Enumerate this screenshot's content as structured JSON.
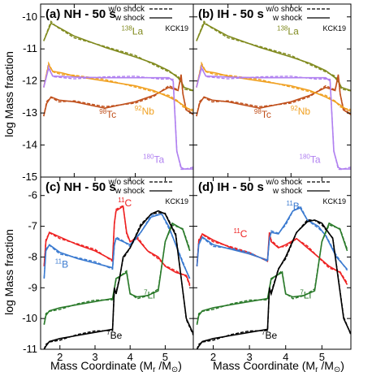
{
  "figure": {
    "shared_xlabel_main": "Mass Coordinate (M",
    "shared_xlabel_sub": "r",
    "shared_xlabel_sep": " /M",
    "shared_xlabel_end": ")",
    "sun_symbol": "⊙"
  },
  "chart_data": [
    {
      "type": "line",
      "panel": "a",
      "title": "(a) NH - 50 s",
      "ylabel": "log Mass fraction",
      "xlabel": "",
      "xlim": [
        1.45,
        3.95
      ],
      "ylim": [
        -15,
        -9.6
      ],
      "xticks": [
        2,
        3
      ],
      "yticks": [
        -15,
        -14,
        -13,
        -12,
        -11,
        -10
      ],
      "legend": {
        "position": "top-right",
        "entries": [
          "w/o shock",
          "w shock"
        ],
        "styles": [
          "dashed",
          "solid"
        ]
      },
      "tag": "KCK19",
      "annotations": [
        {
          "mass": "138",
          "elem": "La",
          "x": 2.95,
          "y": -10.55
        },
        {
          "mass": "98",
          "elem": "Tc",
          "x": 2.55,
          "y": -13.15
        },
        {
          "mass": "92",
          "elem": "Nb",
          "x": 3.15,
          "y": -13.05
        },
        {
          "mass": "180",
          "elem": "Ta",
          "x": 3.3,
          "y": -14.55
        }
      ],
      "series": [
        {
          "name": "138La",
          "color": "#808a1e",
          "x": [
            1.5,
            1.62,
            1.7,
            2.0,
            2.5,
            3.0,
            3.3,
            3.55,
            3.7,
            3.76,
            3.8,
            3.95
          ],
          "y": [
            -10.75,
            -10.2,
            -10.28,
            -10.6,
            -10.95,
            -11.25,
            -11.45,
            -11.68,
            -11.9,
            -12.05,
            -12.2,
            -12.3
          ]
        },
        {
          "name": "98Tc",
          "color": "#c0501c",
          "x": [
            1.5,
            1.55,
            1.62,
            1.75,
            2.0,
            2.5,
            3.0,
            3.3,
            3.55,
            3.7,
            3.75,
            3.78,
            3.83,
            3.95
          ],
          "y": [
            -13.1,
            -12.7,
            -12.5,
            -12.6,
            -12.65,
            -12.85,
            -12.65,
            -12.45,
            -12.2,
            -12.3,
            -11.8,
            -12.4,
            -12.9,
            -13.05
          ]
        },
        {
          "name": "92Nb",
          "color": "#f0a020",
          "x": [
            1.5,
            1.58,
            1.65,
            1.8,
            2.0,
            2.5,
            3.0,
            3.3,
            3.55,
            3.7,
            3.78,
            3.85,
            3.95
          ],
          "y": [
            -12.2,
            -11.5,
            -11.7,
            -11.75,
            -11.85,
            -12.0,
            -12.15,
            -12.3,
            -12.5,
            -12.65,
            -12.75,
            -12.85,
            -12.95
          ]
        },
        {
          "name": "180Ta",
          "color": "#b080f0",
          "x": [
            1.5,
            1.58,
            1.65,
            2.0,
            2.5,
            3.0,
            3.4,
            3.55,
            3.62,
            3.68,
            3.75,
            3.8,
            3.95
          ],
          "y": [
            -12.2,
            -11.6,
            -11.85,
            -11.88,
            -11.9,
            -11.9,
            -11.9,
            -11.9,
            -12.0,
            -14.2,
            -14.7,
            -14.75,
            -14.75
          ]
        }
      ]
    },
    {
      "type": "line",
      "panel": "b",
      "title": "(b) IH - 50 s",
      "ylabel": "",
      "xlabel": "",
      "xlim": [
        1.45,
        3.95
      ],
      "ylim": [
        -15,
        -9.6
      ],
      "xticks": [
        2,
        3
      ],
      "yticks": [
        -15,
        -14,
        -13,
        -12,
        -11,
        -10
      ],
      "legend": {
        "position": "top-right",
        "entries": [
          "w/o shock",
          "w shock"
        ],
        "styles": [
          "dashed",
          "solid"
        ]
      },
      "tag": "KCK19",
      "annotations": [
        {
          "mass": "138",
          "elem": "La",
          "x": 2.95,
          "y": -10.55
        },
        {
          "mass": "98",
          "elem": "Tc",
          "x": 2.55,
          "y": -13.15
        },
        {
          "mass": "92",
          "elem": "Nb",
          "x": 3.15,
          "y": -13.05
        },
        {
          "mass": "180",
          "elem": "Ta",
          "x": 3.3,
          "y": -14.55
        }
      ],
      "series": [
        {
          "name": "138La",
          "color": "#808a1e",
          "x": [
            1.5,
            1.62,
            1.7,
            2.0,
            2.5,
            3.0,
            3.3,
            3.55,
            3.7,
            3.76,
            3.8,
            3.95
          ],
          "y": [
            -10.75,
            -10.2,
            -10.28,
            -10.6,
            -10.95,
            -11.25,
            -11.45,
            -11.68,
            -11.9,
            -12.05,
            -12.2,
            -12.3
          ]
        },
        {
          "name": "98Tc",
          "color": "#c0501c",
          "x": [
            1.5,
            1.55,
            1.62,
            1.75,
            2.0,
            2.5,
            3.0,
            3.3,
            3.55,
            3.7,
            3.75,
            3.78,
            3.83,
            3.95
          ],
          "y": [
            -13.1,
            -12.7,
            -12.5,
            -12.6,
            -12.65,
            -12.85,
            -12.65,
            -12.45,
            -12.2,
            -12.3,
            -11.8,
            -12.4,
            -12.9,
            -13.05
          ]
        },
        {
          "name": "92Nb",
          "color": "#f0a020",
          "x": [
            1.5,
            1.58,
            1.65,
            1.8,
            2.0,
            2.5,
            3.0,
            3.3,
            3.55,
            3.7,
            3.78,
            3.85,
            3.95
          ],
          "y": [
            -12.2,
            -11.5,
            -11.7,
            -11.75,
            -11.85,
            -12.0,
            -12.15,
            -12.3,
            -12.5,
            -12.65,
            -12.75,
            -12.85,
            -12.95
          ]
        },
        {
          "name": "180Ta",
          "color": "#b080f0",
          "x": [
            1.5,
            1.58,
            1.65,
            2.0,
            2.5,
            3.0,
            3.4,
            3.55,
            3.62,
            3.68,
            3.75,
            3.8,
            3.95
          ],
          "y": [
            -12.2,
            -11.6,
            -11.85,
            -11.88,
            -11.9,
            -11.9,
            -11.9,
            -11.9,
            -12.0,
            -14.2,
            -14.7,
            -14.75,
            -14.75
          ]
        }
      ]
    },
    {
      "type": "line",
      "panel": "c",
      "title": "(c) NH - 50 s",
      "ylabel": "log Mass fraction",
      "xlabel": "Mass Coordinate (Mr /M⊙)",
      "xlim": [
        1.45,
        5.8
      ],
      "ylim": [
        -11,
        -5.4
      ],
      "xticks": [
        2,
        3,
        4,
        5
      ],
      "yticks": [
        -11,
        -10,
        -9,
        -8,
        -7,
        -6
      ],
      "legend": {
        "position": "top-right",
        "entries": [
          "w/o shock",
          "w shock"
        ],
        "styles": [
          "dashed",
          "solid"
        ]
      },
      "tag": "KCK19",
      "annotations": [
        {
          "mass": "11",
          "elem": "C",
          "x": 3.85,
          "y": -6.35,
          "color": "#ee2222"
        },
        {
          "mass": "11",
          "elem": "B",
          "x": 2.05,
          "y": -8.35,
          "color": "#3a7ad0"
        },
        {
          "mass": "7",
          "elem": "Li",
          "x": 4.55,
          "y": -9.35,
          "color": "#2a7a2a"
        },
        {
          "mass": "7",
          "elem": "Be",
          "x": 3.55,
          "y": -10.65,
          "color": "#000000"
        }
      ],
      "series": [
        {
          "name": "11C",
          "color": "#ee2222",
          "x": [
            1.55,
            1.6,
            1.7,
            2.0,
            2.5,
            3.0,
            3.5,
            3.55,
            3.6,
            3.8,
            3.9,
            4.0,
            4.2,
            4.5,
            4.8,
            5.0,
            5.3,
            5.6,
            5.7
          ],
          "y": [
            -8.3,
            -7.5,
            -7.2,
            -7.35,
            -7.6,
            -7.8,
            -8.1,
            -6.9,
            -6.5,
            -6.35,
            -7.2,
            -7.5,
            -7.4,
            -7.8,
            -8.0,
            -8.3,
            -8.5,
            -8.6,
            -8.9
          ]
        },
        {
          "name": "11B",
          "color": "#3a7ad0",
          "x": [
            1.55,
            1.6,
            1.7,
            2.0,
            2.5,
            3.0,
            3.5,
            3.55,
            3.6,
            3.8,
            4.0,
            4.3,
            4.6,
            4.9,
            5.1,
            5.3,
            5.5,
            5.7
          ],
          "y": [
            -8.7,
            -7.8,
            -7.6,
            -7.85,
            -8.05,
            -8.2,
            -8.35,
            -7.6,
            -7.4,
            -7.5,
            -7.6,
            -7.2,
            -6.7,
            -6.6,
            -7.0,
            -7.6,
            -8.2,
            -8.7
          ]
        },
        {
          "name": "7Li",
          "color": "#2a7a2a",
          "x": [
            1.55,
            1.6,
            1.7,
            2.0,
            2.5,
            3.0,
            3.5,
            3.6,
            3.9,
            4.0,
            4.2,
            4.5,
            4.8,
            5.0,
            5.2,
            5.5,
            5.7
          ],
          "y": [
            -10.2,
            -9.9,
            -9.75,
            -9.65,
            -9.55,
            -9.45,
            -9.35,
            -8.7,
            -8.5,
            -9.2,
            -9.3,
            -9.25,
            -9.1,
            -7.5,
            -6.9,
            -7.1,
            -7.8
          ]
        },
        {
          "name": "7Be",
          "color": "#000000",
          "x": [
            1.55,
            1.6,
            1.7,
            2.0,
            2.5,
            3.0,
            3.5,
            3.55,
            3.6,
            3.7,
            3.8,
            4.0,
            4.3,
            4.6,
            4.8,
            5.0,
            5.3,
            5.6,
            5.8
          ],
          "y": [
            -11.0,
            -10.9,
            -10.75,
            -10.65,
            -10.55,
            -10.45,
            -10.35,
            -9.0,
            -9.2,
            -8.7,
            -8.0,
            -7.7,
            -7.0,
            -6.6,
            -6.5,
            -6.6,
            -7.3,
            -10.0,
            -10.5
          ]
        }
      ]
    },
    {
      "type": "line",
      "panel": "d",
      "title": "(d) IH - 50 s",
      "ylabel": "",
      "xlabel": "Mass Coordinate (Mr /M⊙)",
      "xlim": [
        1.45,
        5.8
      ],
      "ylim": [
        -11,
        -5.4
      ],
      "xticks": [
        2,
        3,
        4,
        5
      ],
      "yticks": [
        -11,
        -10,
        -9,
        -8,
        -7,
        -6
      ],
      "legend": {
        "position": "top-right",
        "entries": [
          "w/o shock",
          "w shock"
        ],
        "styles": [
          "dashed",
          "solid"
        ]
      },
      "tag": "KCK19",
      "annotations": [
        {
          "mass": "11",
          "elem": "C",
          "x": 2.75,
          "y": -7.35,
          "color": "#ee2222"
        },
        {
          "mass": "11",
          "elem": "B",
          "x": 4.2,
          "y": -6.45,
          "color": "#3a7ad0"
        },
        {
          "mass": "7",
          "elem": "Li",
          "x": 4.55,
          "y": -9.35,
          "color": "#2a7a2a"
        },
        {
          "mass": "7",
          "elem": "Be",
          "x": 3.55,
          "y": -10.65,
          "color": "#000000"
        }
      ],
      "series": [
        {
          "name": "11C",
          "color": "#ee2222",
          "x": [
            1.55,
            1.6,
            1.7,
            2.0,
            2.5,
            3.0,
            3.5,
            3.55,
            3.6,
            3.8,
            4.0,
            4.3,
            4.6,
            4.9,
            5.2,
            5.5,
            5.7
          ],
          "y": [
            -8.3,
            -7.5,
            -7.25,
            -7.45,
            -7.7,
            -7.9,
            -8.1,
            -7.2,
            -7.5,
            -7.7,
            -7.6,
            -7.4,
            -7.7,
            -8.0,
            -8.3,
            -8.5,
            -8.9
          ]
        },
        {
          "name": "11B",
          "color": "#3a7ad0",
          "x": [
            1.55,
            1.6,
            1.7,
            2.0,
            2.5,
            3.0,
            3.5,
            3.55,
            3.6,
            3.8,
            4.0,
            4.2,
            4.4,
            4.6,
            4.9,
            5.1,
            5.4,
            5.7
          ],
          "y": [
            -8.3,
            -7.6,
            -7.35,
            -7.6,
            -7.75,
            -7.9,
            -8.1,
            -7.4,
            -7.2,
            -7.25,
            -6.9,
            -6.5,
            -6.4,
            -6.8,
            -7.0,
            -7.3,
            -8.0,
            -8.4
          ]
        },
        {
          "name": "7Li",
          "color": "#2a7a2a",
          "x": [
            1.55,
            1.6,
            1.7,
            2.0,
            2.5,
            3.0,
            3.5,
            3.6,
            3.9,
            4.0,
            4.2,
            4.5,
            4.8,
            5.0,
            5.2,
            5.5,
            5.7
          ],
          "y": [
            -10.2,
            -9.9,
            -9.75,
            -9.65,
            -9.55,
            -9.45,
            -9.35,
            -8.7,
            -8.5,
            -9.2,
            -9.3,
            -9.25,
            -9.1,
            -7.5,
            -6.9,
            -7.1,
            -7.8
          ]
        },
        {
          "name": "7Be",
          "color": "#000000",
          "x": [
            1.55,
            1.6,
            1.7,
            2.0,
            2.5,
            3.0,
            3.5,
            3.55,
            3.6,
            3.8,
            4.0,
            4.3,
            4.6,
            4.8,
            5.0,
            5.3,
            5.6,
            5.8
          ],
          "y": [
            -11.0,
            -10.9,
            -10.75,
            -10.65,
            -10.55,
            -10.45,
            -10.35,
            -9.0,
            -9.2,
            -8.4,
            -8.0,
            -7.2,
            -6.85,
            -6.8,
            -6.9,
            -7.4,
            -10.0,
            -10.5
          ]
        }
      ]
    }
  ]
}
